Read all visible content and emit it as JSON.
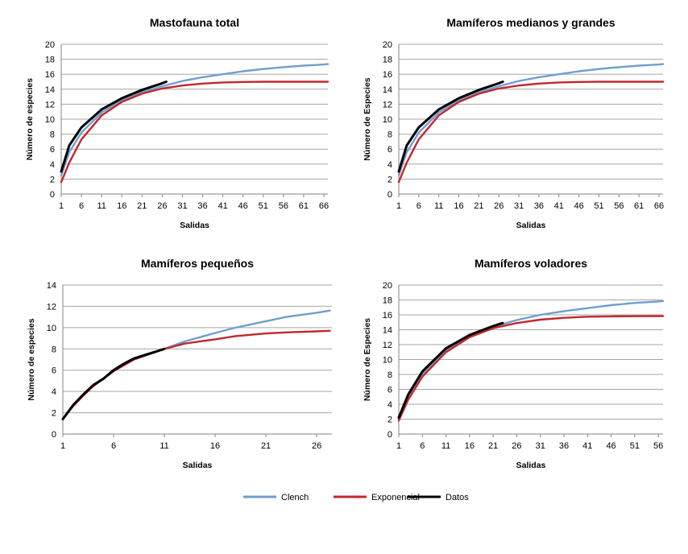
{
  "legend": {
    "items": [
      {
        "name": "Clench",
        "color": "#6f9fd0"
      },
      {
        "name": "Exponencial",
        "color": "#c0282e"
      },
      {
        "name": "Datos",
        "color": "#000000"
      }
    ]
  },
  "chart_data": [
    {
      "type": "line",
      "title": "Mastofauna total",
      "xlabel": "Salidas",
      "ylabel": "Número de especies",
      "xlim": [
        1,
        67
      ],
      "ylim": [
        0,
        20
      ],
      "x_ticks": [
        1,
        6,
        11,
        16,
        21,
        26,
        31,
        36,
        41,
        46,
        51,
        56,
        61,
        66
      ],
      "y_ticks": [
        0,
        2,
        4,
        6,
        8,
        10,
        12,
        14,
        16,
        18,
        20
      ],
      "grid": true,
      "series": [
        {
          "name": "Clench",
          "points": [
            [
              1,
              2.5
            ],
            [
              3,
              5.6
            ],
            [
              6,
              8.2
            ],
            [
              11,
              10.9
            ],
            [
              16,
              12.5
            ],
            [
              21,
              13.6
            ],
            [
              26,
              14.4
            ],
            [
              31,
              15.1
            ],
            [
              36,
              15.6
            ],
            [
              41,
              16.0
            ],
            [
              46,
              16.4
            ],
            [
              51,
              16.7
            ],
            [
              56,
              16.95
            ],
            [
              61,
              17.15
            ],
            [
              66,
              17.3
            ],
            [
              67,
              17.35
            ]
          ]
        },
        {
          "name": "Exponencial",
          "points": [
            [
              1,
              1.6
            ],
            [
              3,
              4.2
            ],
            [
              6,
              7.3
            ],
            [
              11,
              10.5
            ],
            [
              16,
              12.3
            ],
            [
              21,
              13.4
            ],
            [
              26,
              14.1
            ],
            [
              31,
              14.5
            ],
            [
              36,
              14.75
            ],
            [
              41,
              14.9
            ],
            [
              46,
              14.97
            ],
            [
              51,
              15.0
            ],
            [
              56,
              15.0
            ],
            [
              61,
              15.0
            ],
            [
              66,
              15.0
            ],
            [
              67,
              15.0
            ]
          ]
        },
        {
          "name": "Datos",
          "points": [
            [
              1,
              3.0
            ],
            [
              3,
              6.5
            ],
            [
              6,
              8.9
            ],
            [
              11,
              11.3
            ],
            [
              16,
              12.8
            ],
            [
              21,
              13.9
            ],
            [
              26,
              14.8
            ],
            [
              27,
              15.0
            ]
          ]
        }
      ]
    },
    {
      "type": "line",
      "title": "Mamíferos medianos y grandes",
      "xlabel": "Salidas",
      "ylabel": "Número de Especies",
      "xlim": [
        1,
        67
      ],
      "ylim": [
        0,
        20
      ],
      "x_ticks": [
        1,
        6,
        11,
        16,
        21,
        26,
        31,
        36,
        41,
        46,
        51,
        56,
        61,
        66
      ],
      "y_ticks": [
        0,
        2,
        4,
        6,
        8,
        10,
        12,
        14,
        16,
        18,
        20
      ],
      "grid": true,
      "series": [
        {
          "name": "Clench",
          "points": [
            [
              1,
              2.5
            ],
            [
              3,
              5.6
            ],
            [
              6,
              8.2
            ],
            [
              11,
              10.9
            ],
            [
              16,
              12.5
            ],
            [
              21,
              13.6
            ],
            [
              26,
              14.4
            ],
            [
              31,
              15.1
            ],
            [
              36,
              15.6
            ],
            [
              41,
              16.0
            ],
            [
              46,
              16.4
            ],
            [
              51,
              16.7
            ],
            [
              56,
              16.95
            ],
            [
              61,
              17.15
            ],
            [
              66,
              17.3
            ],
            [
              67,
              17.35
            ]
          ]
        },
        {
          "name": "Exponencial",
          "points": [
            [
              1,
              1.6
            ],
            [
              3,
              4.2
            ],
            [
              6,
              7.3
            ],
            [
              11,
              10.5
            ],
            [
              16,
              12.3
            ],
            [
              21,
              13.4
            ],
            [
              26,
              14.1
            ],
            [
              31,
              14.5
            ],
            [
              36,
              14.75
            ],
            [
              41,
              14.9
            ],
            [
              46,
              14.97
            ],
            [
              51,
              15.0
            ],
            [
              56,
              15.0
            ],
            [
              61,
              15.0
            ],
            [
              66,
              15.0
            ],
            [
              67,
              15.0
            ]
          ]
        },
        {
          "name": "Datos",
          "points": [
            [
              1,
              3.0
            ],
            [
              3,
              6.5
            ],
            [
              6,
              8.9
            ],
            [
              11,
              11.3
            ],
            [
              16,
              12.8
            ],
            [
              21,
              13.9
            ],
            [
              26,
              14.8
            ],
            [
              27,
              15.0
            ]
          ]
        }
      ]
    },
    {
      "type": "line",
      "title": "Mamíferos pequeños",
      "xlabel": "Salidas",
      "ylabel": "Número de especies",
      "xlim": [
        1,
        27.5
      ],
      "ylim": [
        0,
        14
      ],
      "x_ticks": [
        1,
        6,
        11,
        16,
        21,
        26
      ],
      "y_ticks": [
        0,
        2,
        4,
        6,
        8,
        10,
        12,
        14
      ],
      "grid": true,
      "series": [
        {
          "name": "Clench",
          "points": [
            [
              1,
              1.4
            ],
            [
              2,
              2.6
            ],
            [
              3,
              3.6
            ],
            [
              4,
              4.5
            ],
            [
              6,
              5.9
            ],
            [
              8,
              7.0
            ],
            [
              11,
              8.0
            ],
            [
              13,
              8.7
            ],
            [
              16,
              9.5
            ],
            [
              18,
              10.0
            ],
            [
              21,
              10.6
            ],
            [
              23,
              11.0
            ],
            [
              26,
              11.4
            ],
            [
              27.3,
              11.6
            ]
          ]
        },
        {
          "name": "Exponencial",
          "points": [
            [
              1,
              1.4
            ],
            [
              2,
              2.6
            ],
            [
              3,
              3.6
            ],
            [
              4,
              4.5
            ],
            [
              6,
              5.9
            ],
            [
              8,
              7.0
            ],
            [
              11,
              8.0
            ],
            [
              13,
              8.5
            ],
            [
              16,
              8.9
            ],
            [
              18,
              9.2
            ],
            [
              21,
              9.45
            ],
            [
              23,
              9.55
            ],
            [
              26,
              9.65
            ],
            [
              27.3,
              9.7
            ]
          ]
        },
        {
          "name": "Datos",
          "points": [
            [
              1,
              1.4
            ],
            [
              2,
              2.7
            ],
            [
              3,
              3.7
            ],
            [
              4,
              4.6
            ],
            [
              5,
              5.2
            ],
            [
              6,
              6.0
            ],
            [
              7,
              6.6
            ],
            [
              8,
              7.1
            ],
            [
              9,
              7.4
            ],
            [
              10,
              7.7
            ],
            [
              11,
              8.0
            ]
          ]
        }
      ]
    },
    {
      "type": "line",
      "title": "Mamíferos voladores",
      "xlabel": "Salidas",
      "ylabel": "Número de Especies",
      "xlim": [
        1,
        57
      ],
      "ylim": [
        0,
        20
      ],
      "x_ticks": [
        1,
        6,
        11,
        16,
        21,
        26,
        31,
        36,
        41,
        46,
        51,
        56
      ],
      "y_ticks": [
        0,
        2,
        4,
        6,
        8,
        10,
        12,
        14,
        16,
        18,
        20
      ],
      "grid": true,
      "series": [
        {
          "name": "Clench",
          "points": [
            [
              1,
              2.0
            ],
            [
              3,
              5.1
            ],
            [
              6,
              8.1
            ],
            [
              11,
              11.3
            ],
            [
              16,
              13.2
            ],
            [
              21,
              14.4
            ],
            [
              26,
              15.3
            ],
            [
              31,
              16.0
            ],
            [
              36,
              16.5
            ],
            [
              41,
              16.9
            ],
            [
              46,
              17.3
            ],
            [
              51,
              17.6
            ],
            [
              56,
              17.8
            ],
            [
              57,
              17.85
            ]
          ]
        },
        {
          "name": "Exponencial",
          "points": [
            [
              1,
              1.8
            ],
            [
              3,
              4.6
            ],
            [
              6,
              7.7
            ],
            [
              11,
              11.0
            ],
            [
              16,
              13.0
            ],
            [
              21,
              14.2
            ],
            [
              26,
              14.9
            ],
            [
              31,
              15.35
            ],
            [
              36,
              15.6
            ],
            [
              41,
              15.75
            ],
            [
              46,
              15.8
            ],
            [
              51,
              15.82
            ],
            [
              56,
              15.83
            ],
            [
              57,
              15.83
            ]
          ]
        },
        {
          "name": "Datos",
          "points": [
            [
              1,
              2.2
            ],
            [
              3,
              5.3
            ],
            [
              6,
              8.4
            ],
            [
              11,
              11.5
            ],
            [
              16,
              13.3
            ],
            [
              21,
              14.5
            ],
            [
              23,
              14.9
            ]
          ]
        }
      ]
    }
  ]
}
